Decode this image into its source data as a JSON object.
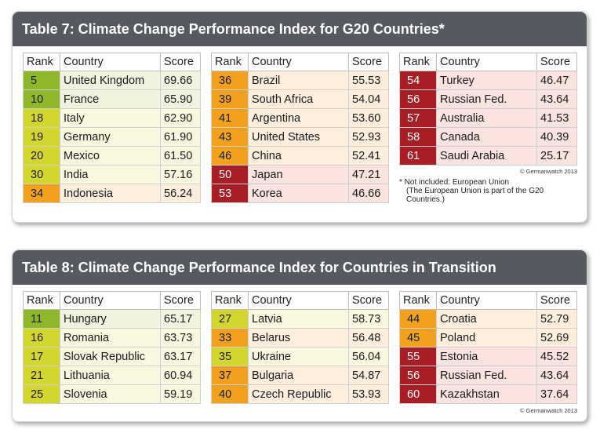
{
  "table7": {
    "title": "Table 7: Climate Change Performance Index for G20 Countries*",
    "headers": {
      "rank": "Rank",
      "country": "Country",
      "score": "Score"
    },
    "col1": [
      {
        "rank": "5",
        "country": "United Kingdom",
        "score": "69.66",
        "grade": "g0"
      },
      {
        "rank": "10",
        "country": "France",
        "score": "65.90",
        "grade": "g0"
      },
      {
        "rank": "18",
        "country": "Italy",
        "score": "62.90",
        "grade": "g1"
      },
      {
        "rank": "19",
        "country": "Germany",
        "score": "61.90",
        "grade": "g1"
      },
      {
        "rank": "20",
        "country": "Mexico",
        "score": "61.50",
        "grade": "g1"
      },
      {
        "rank": "30",
        "country": "India",
        "score": "57.16",
        "grade": "g1"
      },
      {
        "rank": "34",
        "country": "Indonesia",
        "score": "56.24",
        "grade": "g2"
      }
    ],
    "col2": [
      {
        "rank": "36",
        "country": "Brazil",
        "score": "55.53",
        "grade": "g2"
      },
      {
        "rank": "39",
        "country": "South Africa",
        "score": "54.04",
        "grade": "g2"
      },
      {
        "rank": "41",
        "country": "Argentina",
        "score": "53.60",
        "grade": "g2"
      },
      {
        "rank": "43",
        "country": "United States",
        "score": "52.93",
        "grade": "g2"
      },
      {
        "rank": "46",
        "country": "China",
        "score": "52.41",
        "grade": "g2"
      },
      {
        "rank": "50",
        "country": "Japan",
        "score": "47.21",
        "grade": "g3"
      },
      {
        "rank": "53",
        "country": "Korea",
        "score": "46.66",
        "grade": "g3"
      }
    ],
    "col3": [
      {
        "rank": "54",
        "country": "Turkey",
        "score": "46.47",
        "grade": "g3"
      },
      {
        "rank": "56",
        "country": "Russian Fed.",
        "score": "43.64",
        "grade": "g3"
      },
      {
        "rank": "57",
        "country": "Australia",
        "score": "41.53",
        "grade": "g3"
      },
      {
        "rank": "58",
        "country": "Canada",
        "score": "40.39",
        "grade": "g3"
      },
      {
        "rank": "61",
        "country": "Saudi Arabia",
        "score": "25.17",
        "grade": "g3"
      }
    ],
    "copyright": "© Germanwatch 2013",
    "note_line1": "* Not included: European Union",
    "note_line2": "(The European Union is part of the G20",
    "note_line3": "Countries.)"
  },
  "table8": {
    "title": "Table 8: Climate Change Performance Index for Countries in Transition",
    "headers": {
      "rank": "Rank",
      "country": "Country",
      "score": "Score"
    },
    "col1": [
      {
        "rank": "11",
        "country": "Hungary",
        "score": "65.17",
        "grade": "g0"
      },
      {
        "rank": "16",
        "country": "Romania",
        "score": "63.73",
        "grade": "g1"
      },
      {
        "rank": "17",
        "country": "Slovak Republic",
        "score": "63.17",
        "grade": "g1"
      },
      {
        "rank": "21",
        "country": "Lithuania",
        "score": "60.94",
        "grade": "g1"
      },
      {
        "rank": "25",
        "country": "Slovenia",
        "score": "59.19",
        "grade": "g1"
      }
    ],
    "col2": [
      {
        "rank": "27",
        "country": "Latvia",
        "score": "58.73",
        "grade": "g1"
      },
      {
        "rank": "33",
        "country": "Belarus",
        "score": "56.48",
        "grade": "g2"
      },
      {
        "rank": "35",
        "country": "Ukraine",
        "score": "56.04",
        "grade": "g1"
      },
      {
        "rank": "37",
        "country": "Bulgaria",
        "score": "54.87",
        "grade": "g2"
      },
      {
        "rank": "40",
        "country": "Czech Republic",
        "score": "53.93",
        "grade": "g2"
      }
    ],
    "col3": [
      {
        "rank": "44",
        "country": "Croatia",
        "score": "52.79",
        "grade": "g2"
      },
      {
        "rank": "45",
        "country": "Poland",
        "score": "52.69",
        "grade": "g2"
      },
      {
        "rank": "55",
        "country": "Estonia",
        "score": "45.52",
        "grade": "g3"
      },
      {
        "rank": "56",
        "country": "Russian Fed.",
        "score": "43.64",
        "grade": "g3"
      },
      {
        "rank": "60",
        "country": "Kazakhstan",
        "score": "37.64",
        "grade": "g3"
      }
    ],
    "copyright": "© Germanwatch 2013"
  },
  "colors": {
    "very_good": "#8fb72b",
    "good": "#d3d62c",
    "moderate": "#f2a11e",
    "very_poor": "#a71e25",
    "header_bar": "#56595f"
  }
}
